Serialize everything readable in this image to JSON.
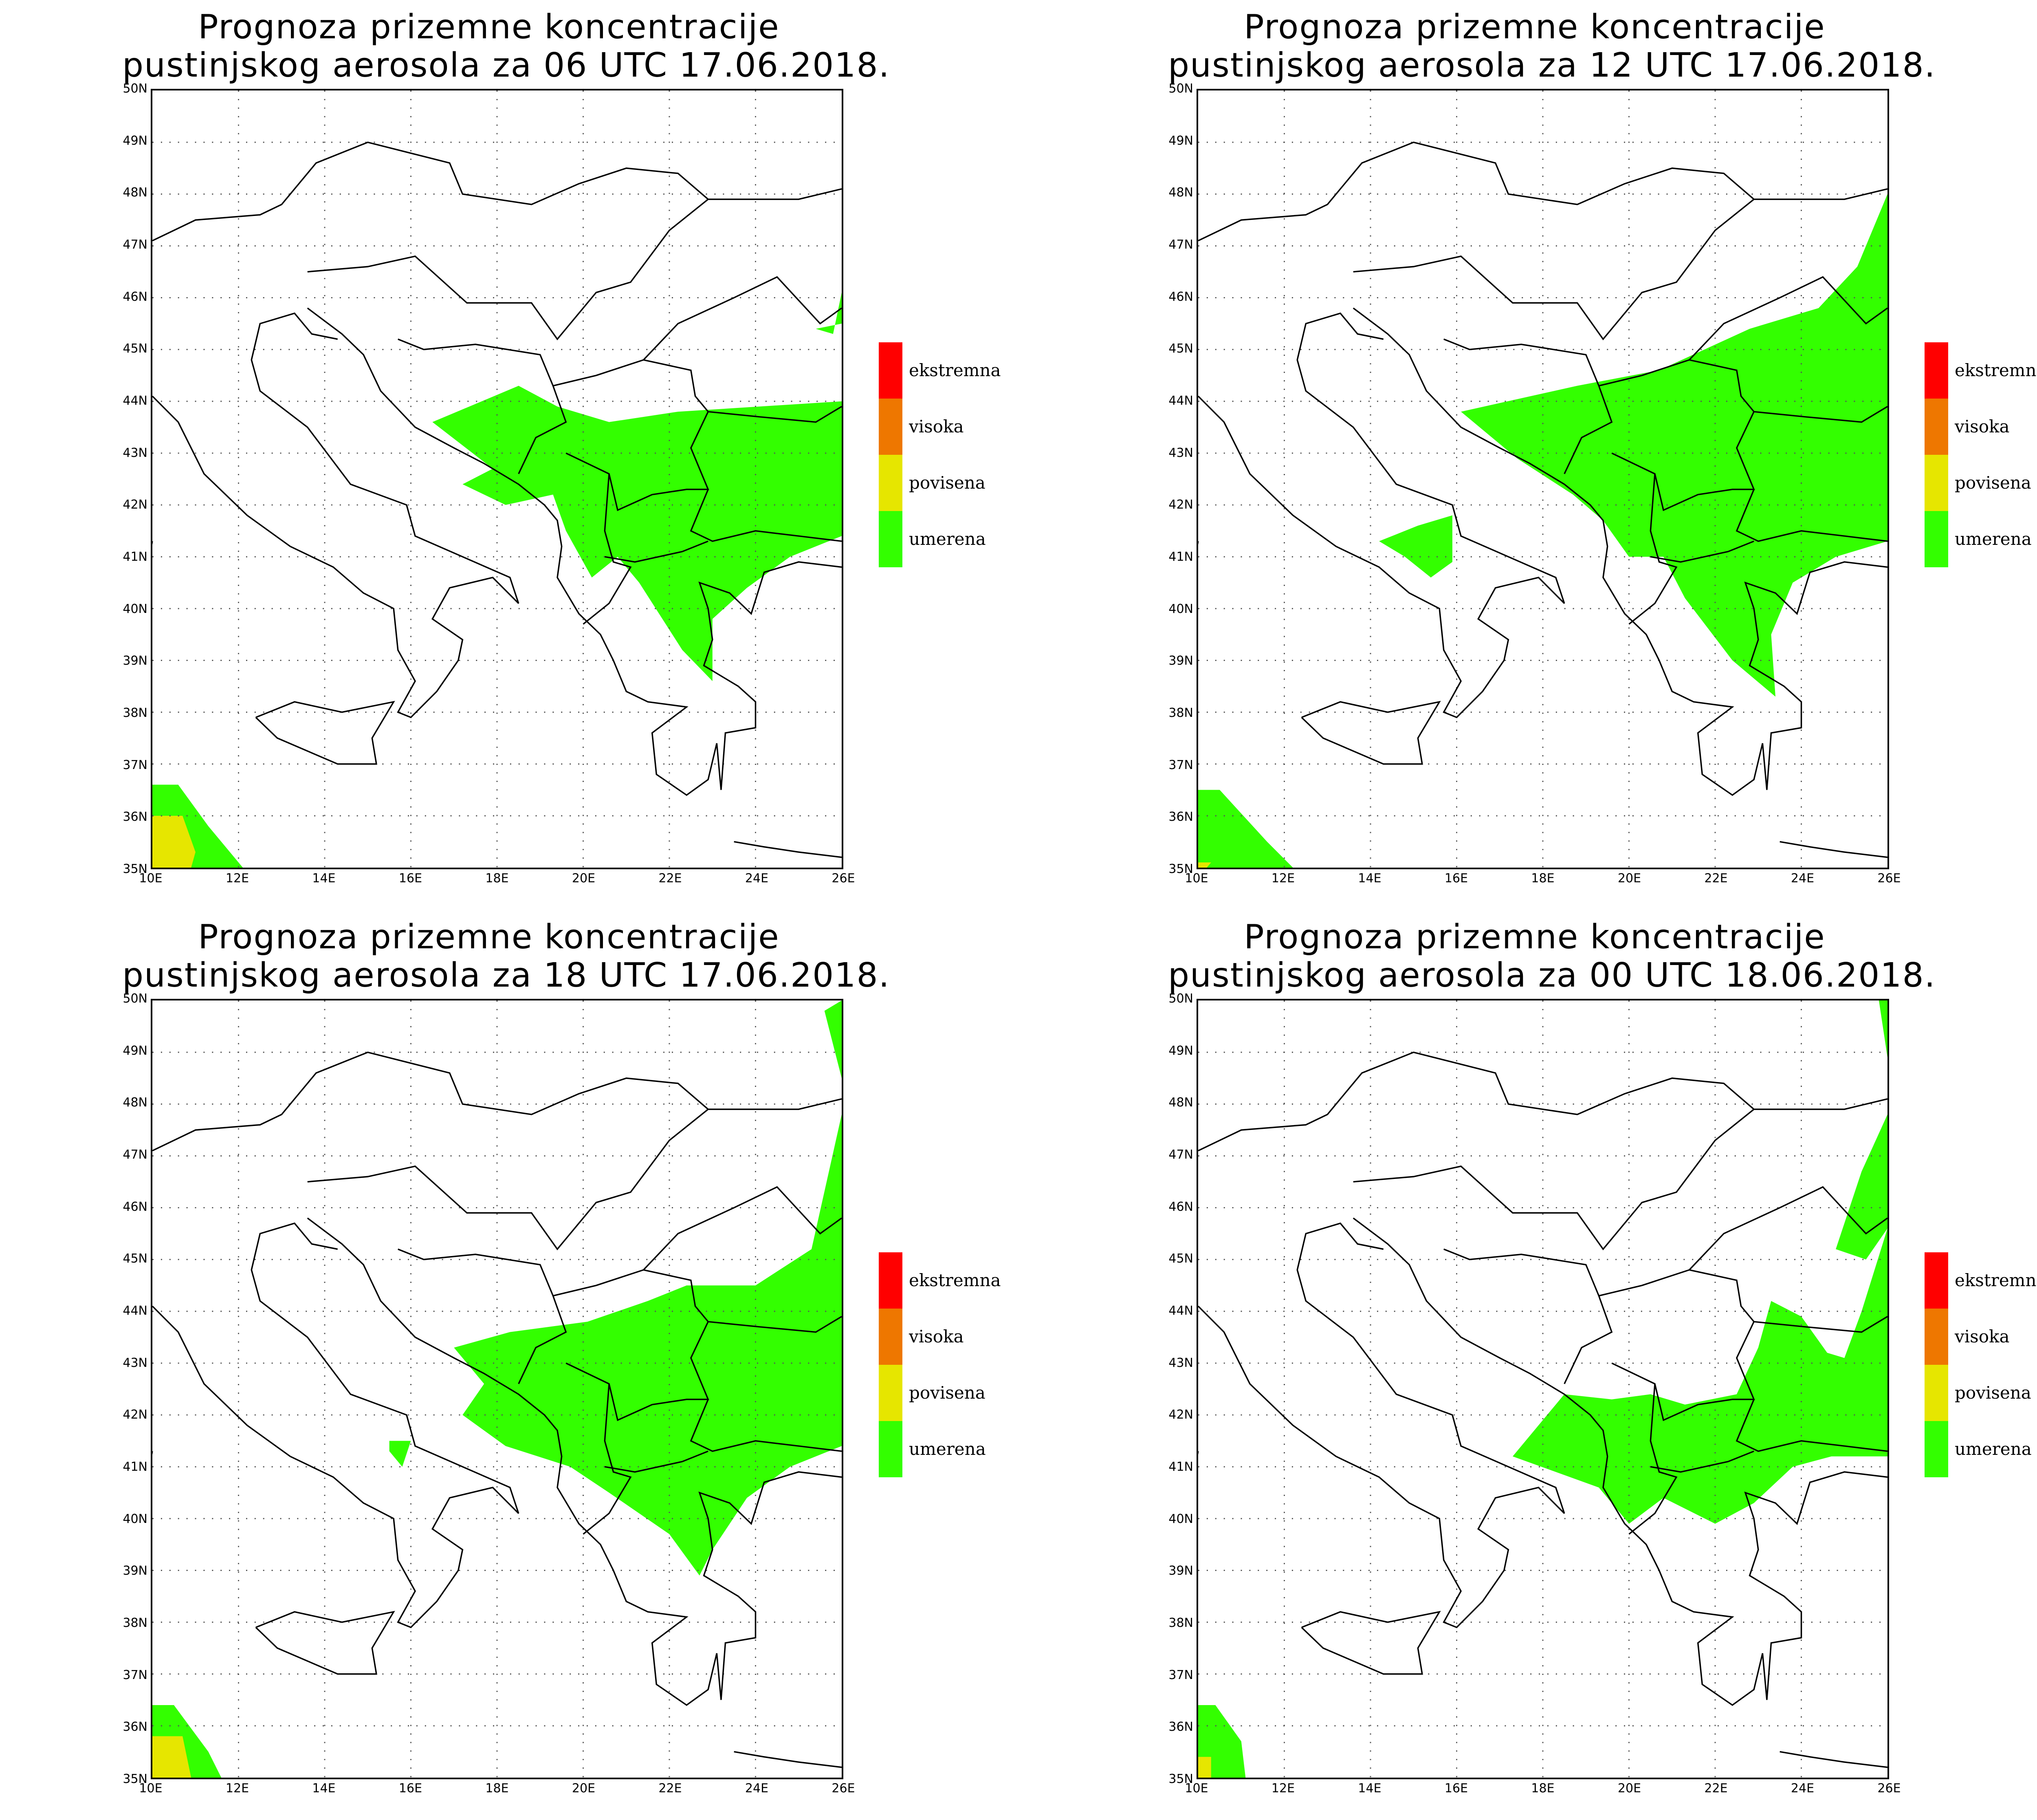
{
  "panels": [
    {
      "title_line1": "Prognoza prizemne koncentracije",
      "title_line2": "pustinjskog aerosola za 06 UTC 17.06.2018."
    },
    {
      "title_line1": "Prognoza prizemne koncentracije",
      "title_line2": "pustinjskog aerosola za 12 UTC 17.06.2018."
    },
    {
      "title_line1": "Prognoza prizemne koncentracije",
      "title_line2": "pustinjskog aerosola za 18 UTC 17.06.2018."
    },
    {
      "title_line1": "Prognoza prizemne koncentracije",
      "title_line2": "pustinjskog aerosola za 00 UTC 18.06.2018."
    }
  ],
  "axes": {
    "lat_labels": [
      "50N",
      "49N",
      "48N",
      "47N",
      "46N",
      "45N",
      "44N",
      "43N",
      "42N",
      "41N",
      "40N",
      "39N",
      "38N",
      "37N",
      "36N",
      "35N"
    ],
    "lon_labels": [
      "10E",
      "12E",
      "14E",
      "16E",
      "18E",
      "20E",
      "22E",
      "24E",
      "26E"
    ]
  },
  "legend": {
    "items": [
      {
        "label": "ekstremna",
        "color": "#ff0000"
      },
      {
        "label": "visoka",
        "color": "#ee7700"
      },
      {
        "label": "povisena",
        "color": "#e6e600"
      },
      {
        "label": "umerena",
        "color": "#33ff00"
      }
    ]
  },
  "colors": {
    "land_outline": "#000000",
    "grid": "#555555",
    "background": "#ffffff"
  }
}
